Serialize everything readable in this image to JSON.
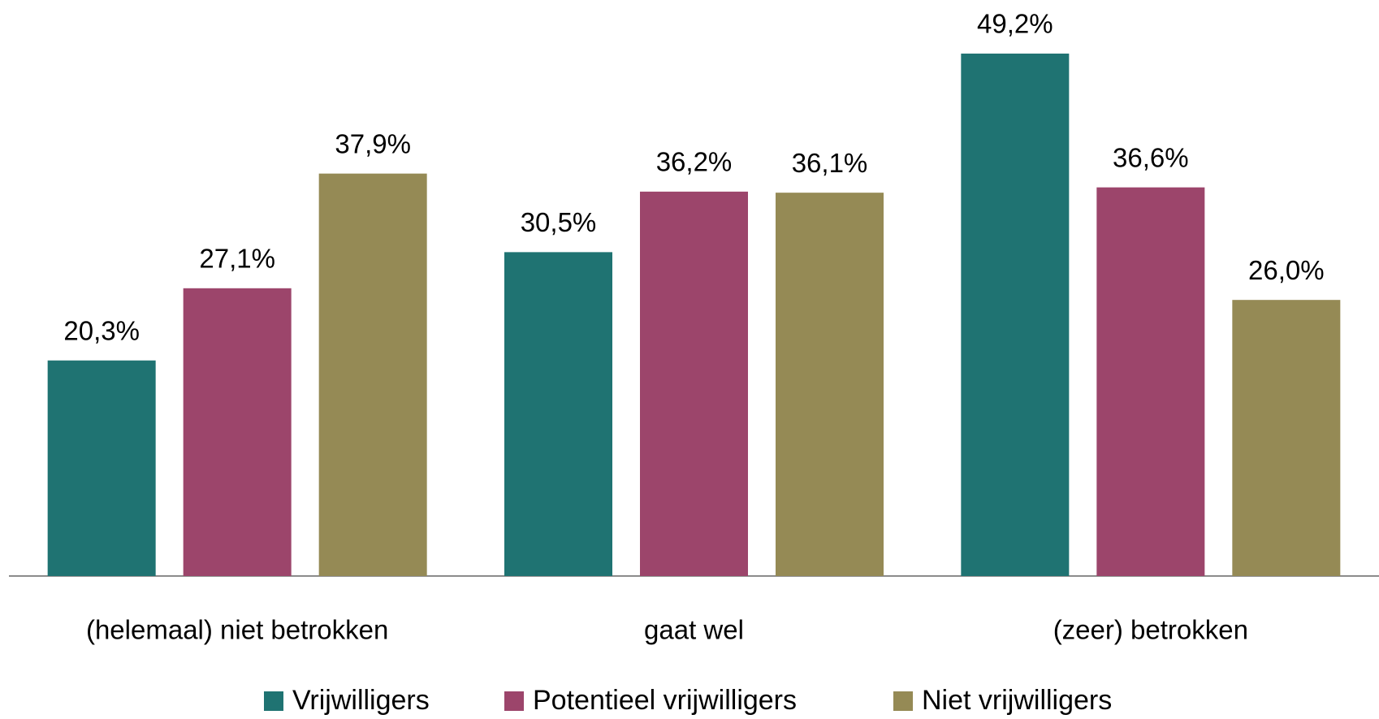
{
  "chart_data": {
    "type": "bar",
    "categories": [
      "(helemaal) niet betrokken",
      "gaat wel",
      "(zeer) betrokken"
    ],
    "series": [
      {
        "name": "Vrijwilligers",
        "color": "#1f7372",
        "values": [
          20.3,
          30.5,
          49.2
        ],
        "value_labels": [
          "20,3%",
          "30,5%",
          "49,2%"
        ]
      },
      {
        "name": "Potentieel vrijwilligers",
        "color": "#9c456b",
        "values": [
          27.1,
          36.2,
          36.6
        ],
        "value_labels": [
          "27,1%",
          "36,2%",
          "36,6%"
        ]
      },
      {
        "name": "Niet vrijwilligers",
        "color": "#958a55",
        "values": [
          37.9,
          36.1,
          26.0
        ],
        "value_labels": [
          "37,9%",
          "36,1%",
          "26,0%"
        ]
      }
    ],
    "ylim": [
      0,
      50
    ],
    "grid": false,
    "legend": "bottom"
  }
}
